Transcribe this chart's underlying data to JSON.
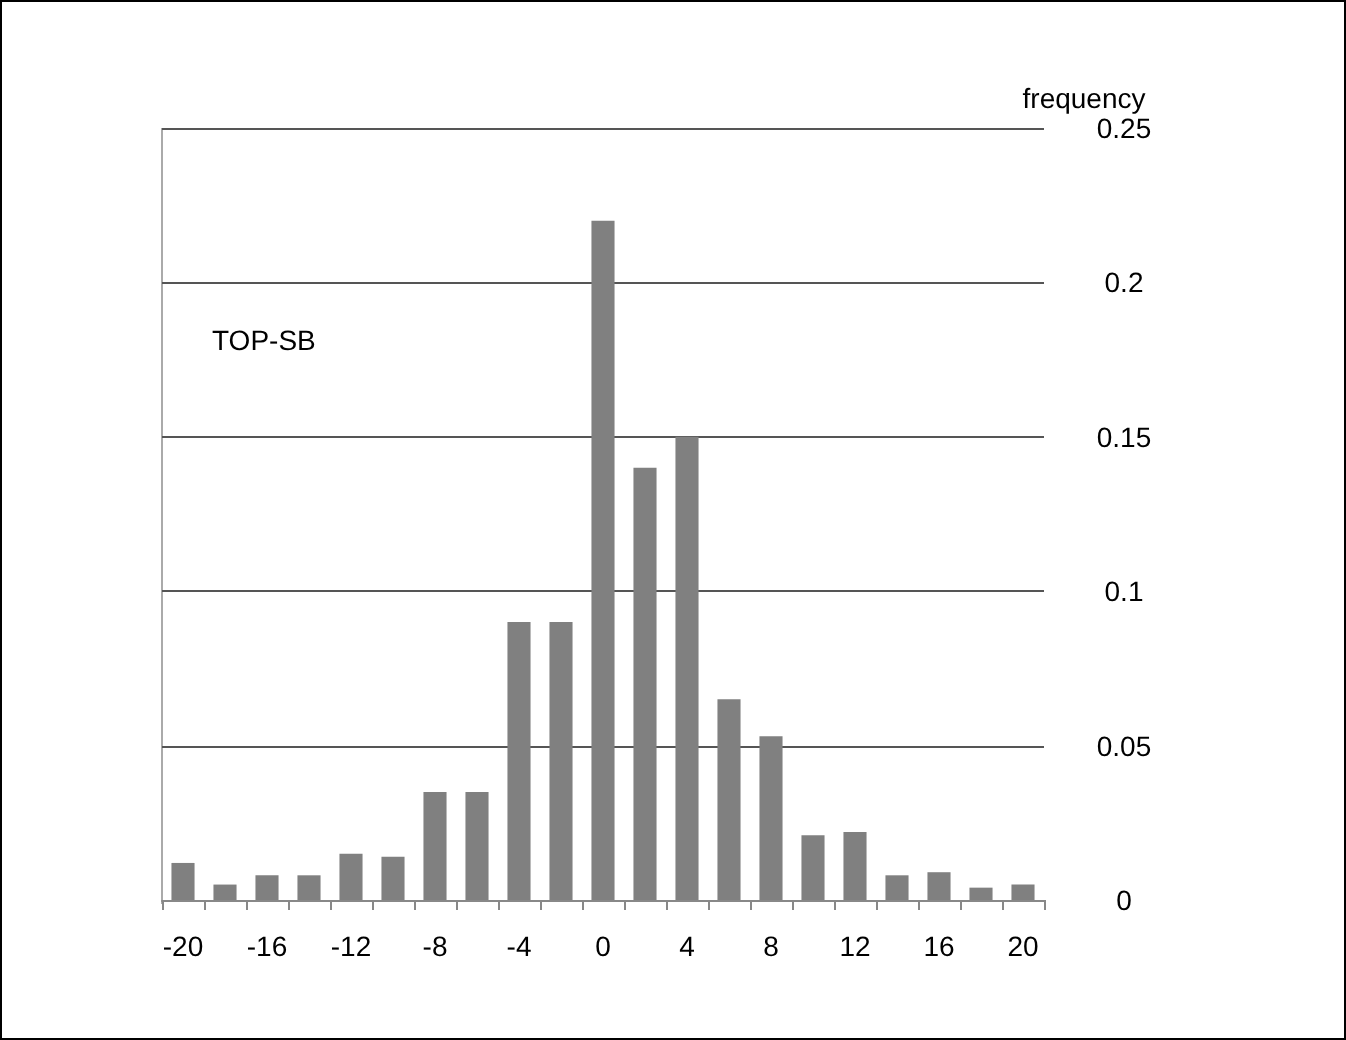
{
  "chart_data": {
    "type": "bar",
    "ylabel": "frequency",
    "annotations": [
      "TOP-SB"
    ],
    "categories": [
      "-20",
      null,
      "-16",
      null,
      "-12",
      null,
      "-8",
      null,
      "-4",
      null,
      "0",
      null,
      "4",
      null,
      "8",
      null,
      "12",
      null,
      "16",
      null,
      "20"
    ],
    "values": [
      0.012,
      0.005,
      0.008,
      0.008,
      0.015,
      0.014,
      0.035,
      0.035,
      0.09,
      0.09,
      0.22,
      0.14,
      0.15,
      0.065,
      0.053,
      0.021,
      0.022,
      0.008,
      0.009,
      0.004,
      0.005
    ],
    "color": "#808080",
    "ylim": [
      0,
      0.25
    ],
    "yticks": [
      0,
      0.05,
      0.1,
      0.15,
      0.2,
      0.25
    ],
    "grid": "y"
  }
}
